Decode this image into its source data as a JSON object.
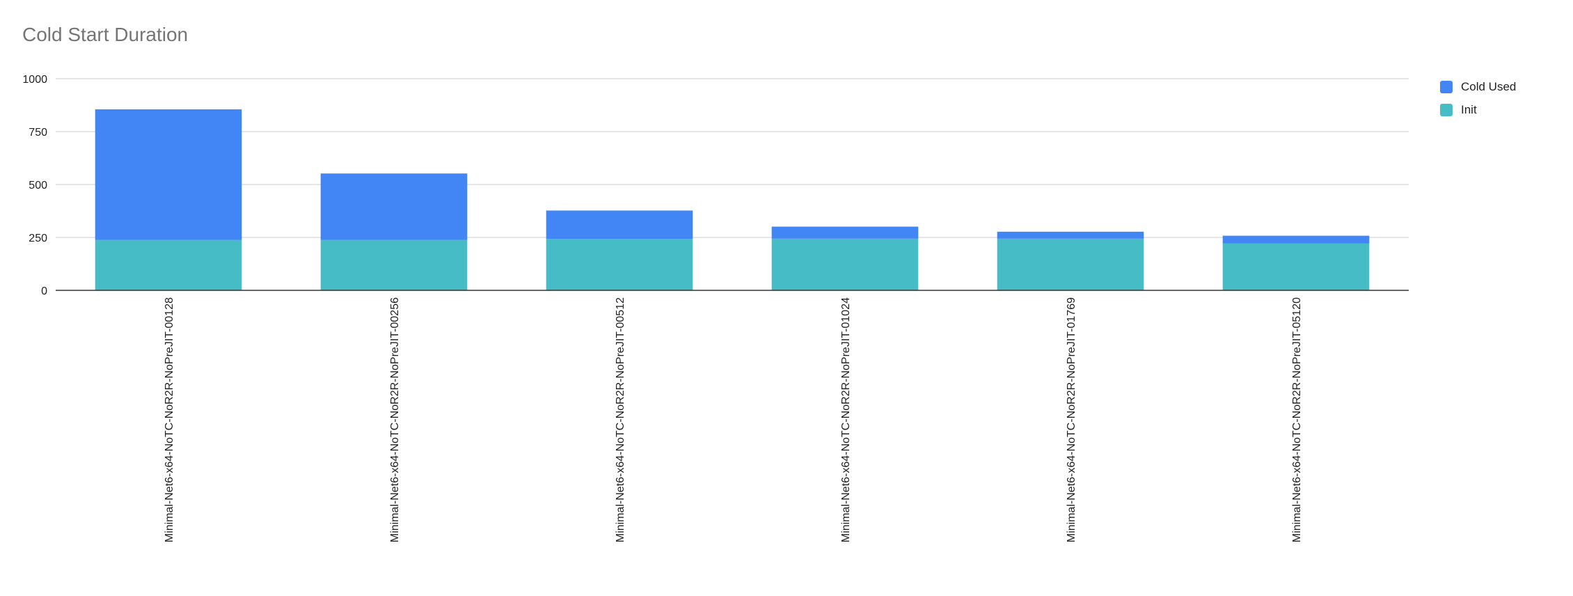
{
  "chart_data": {
    "type": "bar",
    "stacked": true,
    "title": "Cold Start Duration",
    "xlabel": "",
    "ylabel": "",
    "ylim": [
      0,
      1000
    ],
    "yticks": [
      "0",
      "250",
      "500",
      "750",
      "1000"
    ],
    "grid": true,
    "legend_position": "right",
    "categories": [
      "Minimal-Net6-x64-NoTC-NoR2R-NoPreJIT-00128",
      "Minimal-Net6-x64-NoTC-NoR2R-NoPreJIT-00256",
      "Minimal-Net6-x64-NoTC-NoR2R-NoPreJIT-00512",
      "Minimal-Net6-x64-NoTC-NoR2R-NoPreJIT-01024",
      "Minimal-Net6-x64-NoTC-NoR2R-NoPreJIT-01769",
      "Minimal-Net6-x64-NoTC-NoR2R-NoPreJIT-05120"
    ],
    "series": [
      {
        "name": "Init",
        "color": "#46bdc6",
        "values": [
          238,
          238,
          243,
          244,
          244,
          221
        ]
      },
      {
        "name": "Cold Used",
        "color": "#4285f4",
        "values": [
          617,
          314,
          134,
          57,
          33,
          37
        ]
      }
    ]
  },
  "legend": [
    {
      "label": "Cold Used",
      "color": "#4285f4"
    },
    {
      "label": "Init",
      "color": "#46bdc6"
    }
  ]
}
